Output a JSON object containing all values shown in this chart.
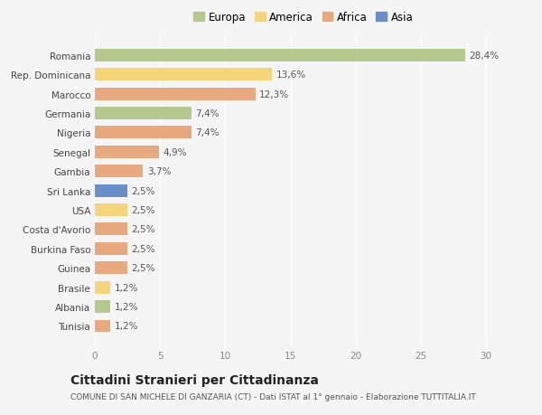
{
  "countries": [
    "Romania",
    "Rep. Dominicana",
    "Marocco",
    "Germania",
    "Nigeria",
    "Senegal",
    "Gambia",
    "Sri Lanka",
    "USA",
    "Costa d'Avorio",
    "Burkina Faso",
    "Guinea",
    "Brasile",
    "Albania",
    "Tunisia"
  ],
  "values": [
    28.4,
    13.6,
    12.3,
    7.4,
    7.4,
    4.9,
    3.7,
    2.5,
    2.5,
    2.5,
    2.5,
    2.5,
    1.2,
    1.2,
    1.2
  ],
  "labels": [
    "28,4%",
    "13,6%",
    "12,3%",
    "7,4%",
    "7,4%",
    "4,9%",
    "3,7%",
    "2,5%",
    "2,5%",
    "2,5%",
    "2,5%",
    "2,5%",
    "1,2%",
    "1,2%",
    "1,2%"
  ],
  "colors": [
    "#b5c98e",
    "#f5d57a",
    "#e8a97e",
    "#b5c98e",
    "#e8a97e",
    "#e8a97e",
    "#e8a97e",
    "#6a8fc8",
    "#f5d57a",
    "#e8a97e",
    "#e8a97e",
    "#e8a97e",
    "#f5d57a",
    "#b5c98e",
    "#e8a97e"
  ],
  "legend_labels": [
    "Europa",
    "America",
    "Africa",
    "Asia"
  ],
  "legend_colors": [
    "#b5c98e",
    "#f5d57a",
    "#e8a97e",
    "#6a8fc8"
  ],
  "title": "Cittadini Stranieri per Cittadinanza",
  "subtitle": "COMUNE DI SAN MICHELE DI GANZARIA (CT) - Dati ISTAT al 1° gennaio - Elaborazione TUTTITALIA.IT",
  "xlim": [
    0,
    32
  ],
  "xticks": [
    0,
    5,
    10,
    15,
    20,
    25,
    30
  ],
  "background_color": "#f5f5f5",
  "bar_height": 0.65,
  "label_fontsize": 7.5,
  "tick_fontsize": 7.5,
  "title_fontsize": 10,
  "subtitle_fontsize": 6.5,
  "legend_fontsize": 8.5
}
